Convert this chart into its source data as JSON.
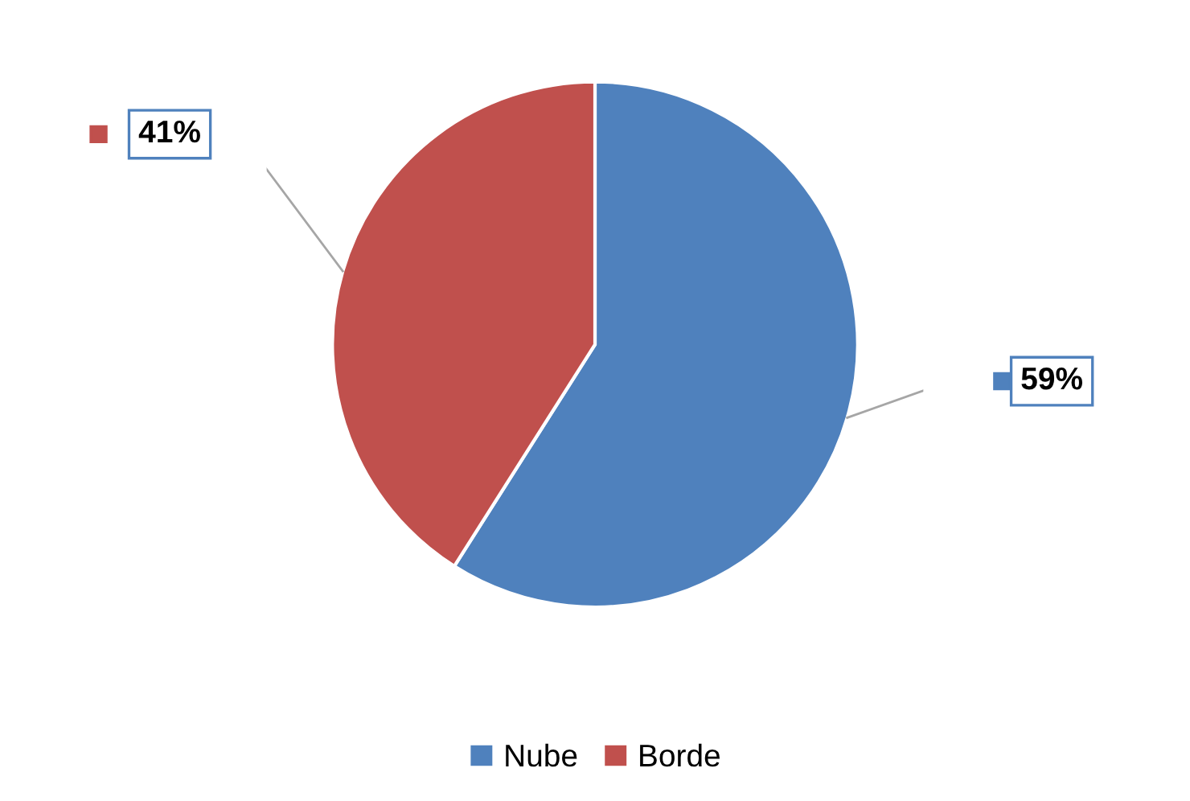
{
  "chart_data": {
    "type": "pie",
    "categories": [
      "Nube",
      "Borde"
    ],
    "values": [
      59,
      41
    ],
    "colors": [
      "#4f81bd",
      "#c0504d"
    ],
    "value_labels": [
      "59%",
      "41%"
    ],
    "legend": "bottom"
  }
}
